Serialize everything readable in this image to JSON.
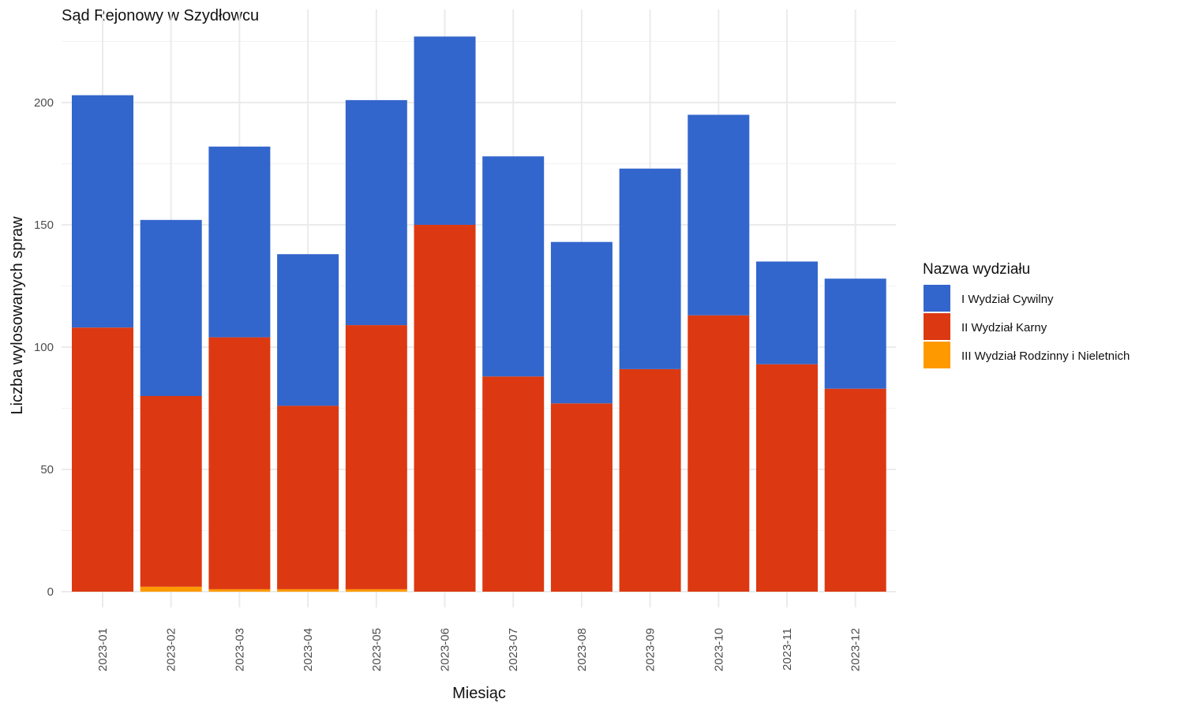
{
  "chart_data": {
    "type": "bar",
    "stacked": true,
    "title": "Sąd Rejonowy w Szydłowcu",
    "xlabel": "Miesiąc",
    "ylabel": "Liczba wylosowanych spraw",
    "ylim": [
      0,
      230
    ],
    "yticks": [
      0,
      50,
      100,
      150,
      200
    ],
    "grid": true,
    "legend_position": "right",
    "legend_title": "Nazwa wydziału",
    "categories": [
      "2023-01",
      "2023-02",
      "2023-03",
      "2023-04",
      "2023-05",
      "2023-06",
      "2023-07",
      "2023-08",
      "2023-09",
      "2023-10",
      "2023-11",
      "2023-12"
    ],
    "series": [
      {
        "name": "III Wydział Rodzinny i Nieletnich",
        "color": "#FF9900",
        "values": [
          0,
          2,
          1,
          1,
          1,
          0,
          0,
          0,
          0,
          0,
          0,
          0
        ]
      },
      {
        "name": "II Wydział Karny",
        "color": "#DC3912",
        "values": [
          108,
          78,
          103,
          75,
          108,
          150,
          88,
          77,
          91,
          113,
          93,
          83
        ]
      },
      {
        "name": "I Wydział Cywilny",
        "color": "#3366CC",
        "values": [
          95,
          72,
          78,
          62,
          92,
          77,
          90,
          66,
          82,
          82,
          42,
          45
        ]
      }
    ],
    "legend_order": [
      "I Wydział Cywilny",
      "II Wydział Karny",
      "III Wydział Rodzinny i Nieletnich"
    ]
  }
}
